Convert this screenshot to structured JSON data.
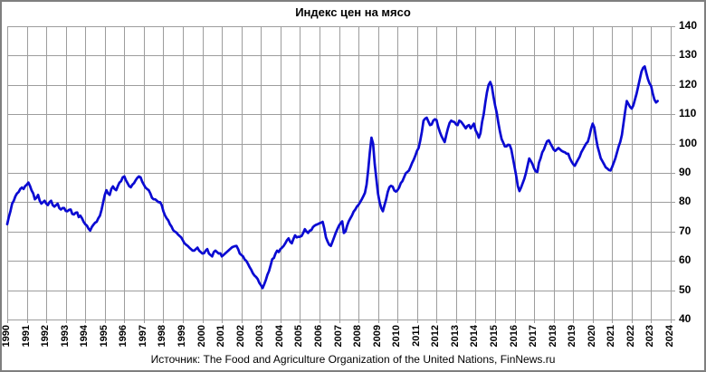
{
  "chart_data": {
    "type": "line",
    "title": "Индекс цен на мясо",
    "source": "Источник: The Food and Agriculture Organization of the United Nations, FinNews.ru",
    "grid": true,
    "legend": "none",
    "colors": {
      "line": "#0a0ad2",
      "grid": "#9d9d9d",
      "text": "#000000",
      "frame": "#7f7f7f",
      "background": "#ffffff"
    },
    "x_axis": {
      "min": 1990,
      "max": 2024,
      "tick_step": 1,
      "tick_labels": [
        "1990",
        "1991",
        "1992",
        "1993",
        "1994",
        "1995",
        "1996",
        "1997",
        "1998",
        "1999",
        "2000",
        "2001",
        "2002",
        "2003",
        "2004",
        "2005",
        "2006",
        "2007",
        "2008",
        "2009",
        "2010",
        "2011",
        "2012",
        "2013",
        "2014",
        "2015",
        "2016",
        "2017",
        "2018",
        "2019",
        "2020",
        "2021",
        "2022",
        "2023",
        "2024"
      ]
    },
    "y_axis": {
      "min": 40,
      "max": 140,
      "tick_step": 10,
      "tick_labels": [
        "40",
        "50",
        "60",
        "70",
        "80",
        "90",
        "100",
        "110",
        "120",
        "130",
        "140"
      ]
    },
    "series": [
      {
        "name": "Индекс цен на мясо",
        "start_year": 1990,
        "interval": "monthly",
        "values": [
          72.5,
          75,
          77,
          79.5,
          80.5,
          82,
          83,
          83.5,
          84.5,
          85,
          84.5,
          85.5,
          86,
          86.7,
          85.5,
          84,
          83,
          81,
          81.5,
          82.5,
          80.5,
          79.5,
          80,
          80.5,
          79.5,
          79,
          80,
          80.5,
          79,
          78.5,
          79,
          79.5,
          78,
          77.5,
          78,
          78,
          77,
          76.9,
          77.4,
          77.5,
          76,
          75.8,
          76.4,
          76.5,
          74.9,
          75.4,
          74.5,
          73.3,
          72.5,
          72,
          71,
          70.3,
          71.5,
          72.3,
          73,
          73.3,
          74.5,
          75.4,
          77.4,
          80,
          82.5,
          84.1,
          83,
          82.5,
          84.5,
          85.4,
          84.5,
          84.1,
          85.5,
          86.7,
          87.2,
          88.5,
          88.8,
          87.5,
          86.5,
          85.5,
          85.1,
          86,
          86.5,
          87.5,
          88.3,
          88.8,
          88.5,
          87,
          86,
          85,
          84.5,
          84.1,
          83,
          81.5,
          81,
          81,
          80.5,
          80,
          80,
          79,
          76.9,
          75.5,
          74.5,
          73.8,
          72.5,
          71.7,
          70.5,
          70,
          69.7,
          69,
          68.5,
          68,
          67,
          66,
          65.5,
          65.1,
          64.5,
          64,
          63.5,
          63.5,
          64,
          64.5,
          63.5,
          63,
          62.5,
          62.6,
          63.5,
          64,
          62.5,
          62,
          61.5,
          63,
          63.5,
          63,
          62.5,
          62.6,
          61.5,
          62,
          62.5,
          63,
          63.5,
          64,
          64.5,
          64.8,
          65,
          65.1,
          64,
          62.5,
          62,
          61.5,
          60.5,
          60,
          59,
          57.9,
          57,
          55.8,
          55,
          54.5,
          53.8,
          52.5,
          51.7,
          50.7,
          52,
          53.5,
          55.3,
          56.5,
          58.5,
          60.6,
          61,
          62.5,
          63.5,
          63,
          64,
          64.5,
          65.1,
          66,
          67,
          67.7,
          66.5,
          66,
          67.5,
          68.7,
          68,
          68.2,
          68.2,
          68.5,
          69.5,
          70.8,
          70,
          69.5,
          70.3,
          70.5,
          71.5,
          72,
          72.3,
          72.5,
          72.8,
          73,
          73.3,
          71,
          68,
          66.6,
          65.5,
          65.1,
          66.5,
          68,
          69.5,
          70.8,
          72,
          72.8,
          73.5,
          69.5,
          70,
          72,
          73.5,
          74.5,
          75.5,
          76.8,
          77.5,
          78.5,
          79.1,
          80,
          81,
          82,
          83.2,
          86,
          91,
          97,
          102,
          100,
          93,
          88,
          83,
          80,
          78,
          76.9,
          79,
          81,
          83.5,
          85.1,
          85.6,
          85.3,
          84,
          83.6,
          84.1,
          85,
          86.5,
          87.2,
          88.5,
          89.8,
          90.3,
          90.8,
          92,
          93.4,
          94.5,
          95.9,
          97.5,
          98.5,
          101,
          104,
          107.8,
          108.5,
          108.8,
          107.5,
          106.3,
          106.5,
          107.8,
          108.3,
          108,
          105.7,
          104,
          102.6,
          101.5,
          100.5,
          103,
          105.2,
          107,
          107.8,
          107.5,
          107.3,
          106.5,
          106.3,
          107.8,
          107.5,
          106.8,
          106,
          105.2,
          106,
          106.3,
          105.2,
          106,
          106.8,
          104.5,
          103.5,
          102,
          103.5,
          107.3,
          110,
          114,
          117.5,
          120,
          121,
          119.5,
          116,
          113,
          110.5,
          107,
          104,
          101.5,
          100.3,
          99,
          99,
          99.6,
          99.5,
          98,
          95,
          92,
          89,
          85.5,
          83.8,
          85,
          86.5,
          88,
          90,
          92.5,
          94.9,
          94,
          93,
          91.5,
          90.5,
          90.3,
          93.5,
          95,
          97,
          98,
          99.5,
          100.8,
          101.1,
          100,
          99,
          98,
          97.5,
          98,
          98.5,
          98,
          97.5,
          97.2,
          97,
          96.5,
          96.5,
          95,
          93.9,
          93,
          92.4,
          93.5,
          94.5,
          95.5,
          97,
          98,
          99,
          100,
          100.6,
          102.5,
          105,
          106.8,
          105.5,
          102,
          99,
          97,
          95,
          94,
          93,
          91.9,
          91.5,
          91,
          90.8,
          92,
          93.5,
          95,
          97,
          99,
          100.6,
          103,
          107,
          111,
          114.5,
          113.5,
          112.5,
          111.9,
          113,
          115,
          117,
          119.5,
          122,
          124.5,
          125.8,
          126.3,
          124,
          122,
          120.5,
          119.6,
          117,
          115,
          114,
          114.5
        ]
      }
    ]
  }
}
